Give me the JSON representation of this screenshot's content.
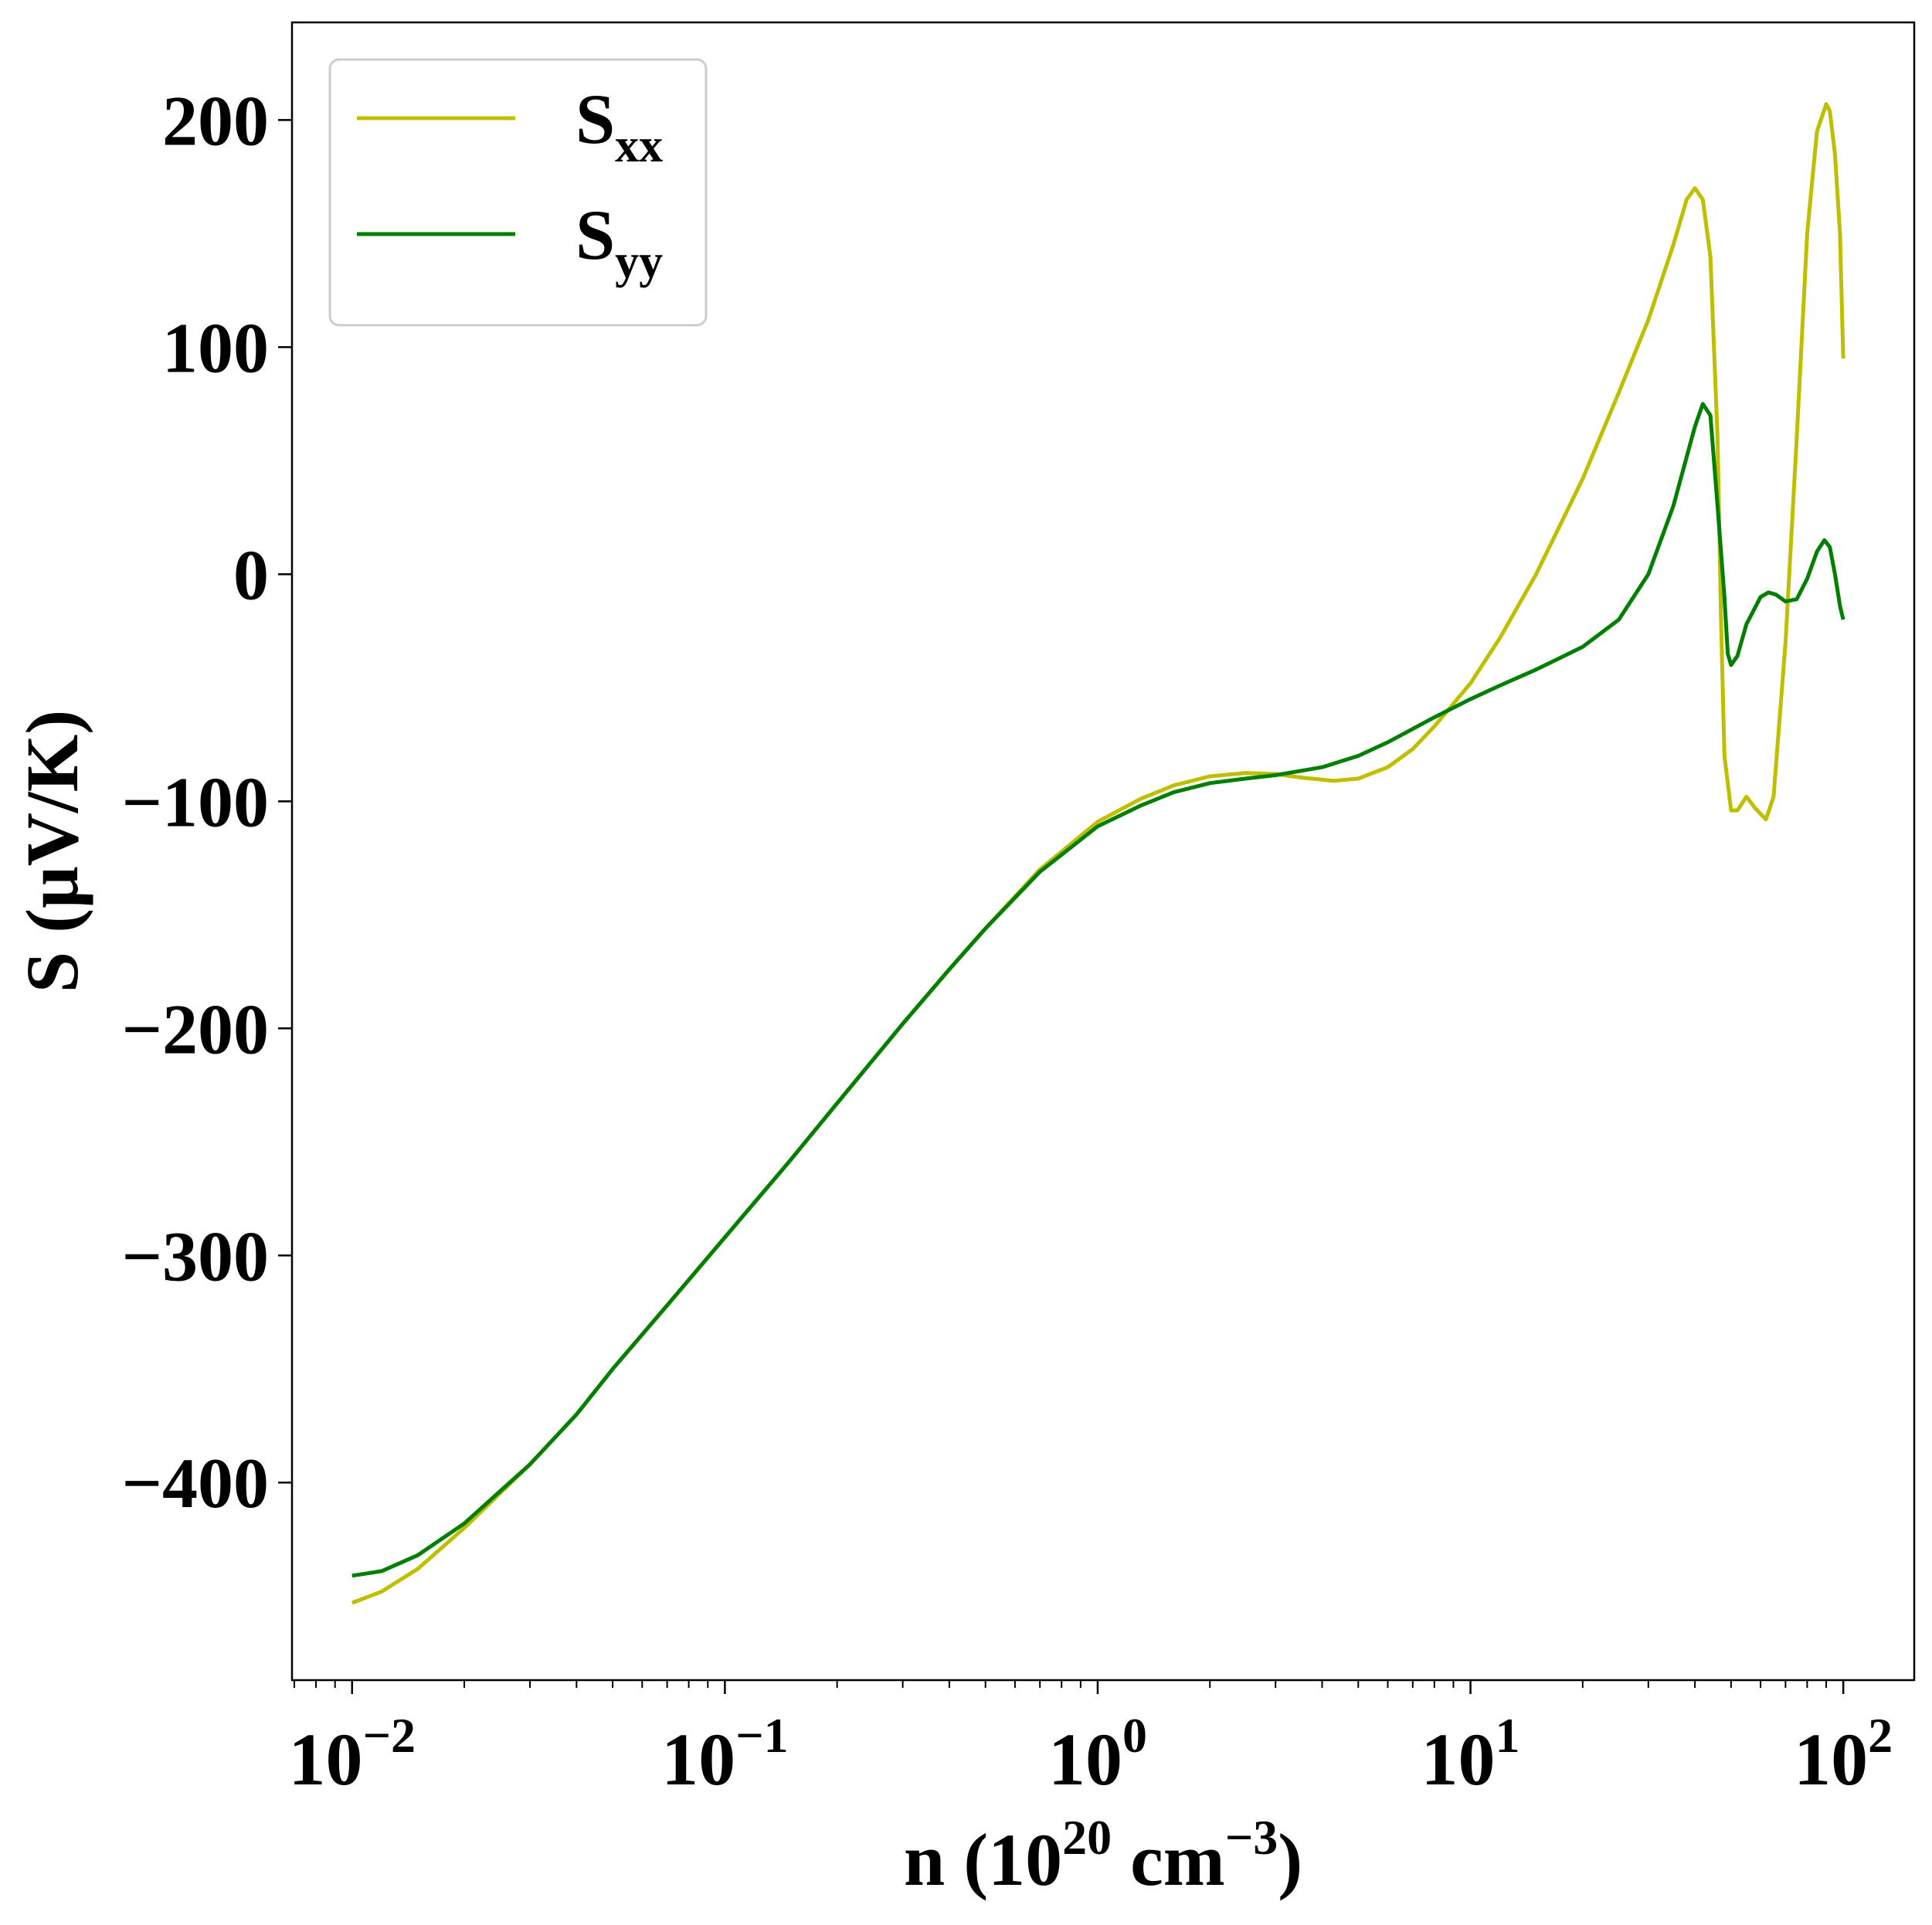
{
  "chart_data": {
    "type": "line",
    "xscale": "log",
    "xlim": [
      0.0069,
      155
    ],
    "ylim": [
      -487,
      243
    ],
    "xlabel": {
      "main": "n (10",
      "sup1": "20",
      "mid": " cm",
      "sup2": "−3",
      "end": ")"
    },
    "ylabel": "S (μV/K)",
    "grid": false,
    "legend_position": "top-left",
    "xticks": [
      {
        "value": 0.01,
        "base": "10",
        "exp": "−2"
      },
      {
        "value": 0.1,
        "base": "10",
        "exp": "−1"
      },
      {
        "value": 1,
        "base": "10",
        "exp": "0"
      },
      {
        "value": 10,
        "base": "10",
        "exp": "1"
      },
      {
        "value": 100,
        "base": "10",
        "exp": "2"
      }
    ],
    "yticks": [
      {
        "value": 200,
        "label": "200"
      },
      {
        "value": 100,
        "label": "100"
      },
      {
        "value": 0,
        "label": "0"
      },
      {
        "value": -100,
        "label": "−100"
      },
      {
        "value": -200,
        "label": "−200"
      },
      {
        "value": -300,
        "label": "−300"
      },
      {
        "value": -400,
        "label": "−400"
      }
    ],
    "series": [
      {
        "name": "S",
        "sub": "xx",
        "color": "#bfbf00",
        "points": [
          [
            0.01,
            -453
          ],
          [
            0.012,
            -448
          ],
          [
            0.015,
            -438
          ],
          [
            0.02,
            -420
          ],
          [
            0.03,
            -392
          ],
          [
            0.04,
            -370
          ],
          [
            0.05,
            -350
          ],
          [
            0.07,
            -322
          ],
          [
            0.1,
            -292
          ],
          [
            0.15,
            -258
          ],
          [
            0.2,
            -233
          ],
          [
            0.3,
            -198
          ],
          [
            0.4,
            -174
          ],
          [
            0.5,
            -156
          ],
          [
            0.7,
            -130
          ],
          [
            1.0,
            -109
          ],
          [
            1.3,
            -99
          ],
          [
            1.6,
            -93
          ],
          [
            2.0,
            -89
          ],
          [
            2.5,
            -87.5
          ],
          [
            3.0,
            -88
          ],
          [
            3.5,
            -89.5
          ],
          [
            4.3,
            -91
          ],
          [
            5.0,
            -90
          ],
          [
            6.0,
            -85
          ],
          [
            7.0,
            -77
          ],
          [
            8.0,
            -67
          ],
          [
            10,
            -48
          ],
          [
            12,
            -28
          ],
          [
            15,
            0
          ],
          [
            20,
            42
          ],
          [
            25,
            80
          ],
          [
            30,
            112
          ],
          [
            35,
            145
          ],
          [
            38,
            165
          ],
          [
            40,
            170
          ],
          [
            42,
            165
          ],
          [
            44,
            140
          ],
          [
            46,
            60
          ],
          [
            47,
            -20
          ],
          [
            48,
            -80
          ],
          [
            50,
            -104
          ],
          [
            52,
            -104
          ],
          [
            55,
            -98
          ],
          [
            58,
            -103
          ],
          [
            62,
            -108
          ],
          [
            65,
            -98
          ],
          [
            70,
            -30
          ],
          [
            75,
            60
          ],
          [
            80,
            150
          ],
          [
            85,
            195
          ],
          [
            90,
            207
          ],
          [
            92,
            204
          ],
          [
            95,
            185
          ],
          [
            98,
            150
          ],
          [
            100,
            95
          ]
        ]
      },
      {
        "name": "S",
        "sub": "yy",
        "color": "#007f00",
        "points": [
          [
            0.01,
            -441
          ],
          [
            0.012,
            -439
          ],
          [
            0.015,
            -432
          ],
          [
            0.02,
            -418
          ],
          [
            0.03,
            -392
          ],
          [
            0.04,
            -370
          ],
          [
            0.05,
            -350
          ],
          [
            0.07,
            -322
          ],
          [
            0.1,
            -292
          ],
          [
            0.15,
            -258
          ],
          [
            0.2,
            -233
          ],
          [
            0.3,
            -198
          ],
          [
            0.4,
            -174
          ],
          [
            0.5,
            -156
          ],
          [
            0.7,
            -131
          ],
          [
            1.0,
            -111
          ],
          [
            1.3,
            -102
          ],
          [
            1.6,
            -96
          ],
          [
            2.0,
            -92
          ],
          [
            2.5,
            -90
          ],
          [
            3.0,
            -88.5
          ],
          [
            4.0,
            -85
          ],
          [
            5.0,
            -80
          ],
          [
            6.0,
            -74
          ],
          [
            8.0,
            -63
          ],
          [
            10,
            -55
          ],
          [
            12,
            -49
          ],
          [
            15,
            -42
          ],
          [
            20,
            -32
          ],
          [
            25,
            -20
          ],
          [
            30,
            0
          ],
          [
            35,
            30
          ],
          [
            40,
            65
          ],
          [
            42,
            75
          ],
          [
            44,
            70
          ],
          [
            46,
            30
          ],
          [
            48,
            -10
          ],
          [
            49,
            -35
          ],
          [
            50,
            -40
          ],
          [
            52,
            -36
          ],
          [
            55,
            -22
          ],
          [
            60,
            -10
          ],
          [
            63,
            -8
          ],
          [
            66,
            -9
          ],
          [
            70,
            -12
          ],
          [
            75,
            -11
          ],
          [
            80,
            -2
          ],
          [
            85,
            10
          ],
          [
            89,
            15
          ],
          [
            92,
            12
          ],
          [
            95,
            0
          ],
          [
            98,
            -14
          ],
          [
            100,
            -20
          ]
        ]
      }
    ]
  }
}
